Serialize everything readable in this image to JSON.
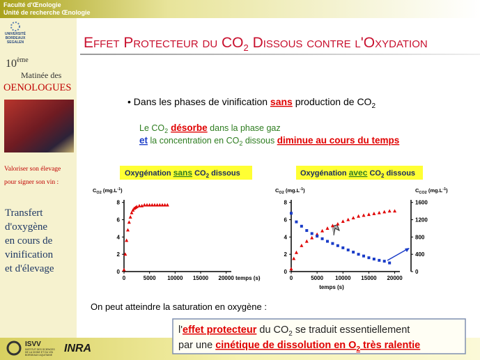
{
  "header": {
    "lines": [
      "Faculté d'Œnologie",
      "Unité de recherche Œnologie"
    ]
  },
  "sidebar": {
    "university": [
      "UNIVERSITÉ",
      "BORDEAUX",
      "SEGALEN"
    ],
    "edition": [
      "10",
      "ème"
    ],
    "event": [
      "Matinée des",
      "OENOLOGUES"
    ],
    "tagline": [
      "Valoriser son élevage",
      "pour signer son vin :"
    ],
    "topic": [
      "Transfert",
      "d'oxygène",
      "en cours de",
      "vinification",
      "et d'élevage"
    ]
  },
  "title": [
    "Effet Protecteur du CO",
    "2",
    " Dissous contre l'",
    "Oxydation"
  ],
  "bullet": [
    "Dans les phases de vinification ",
    "sans",
    " production de CO",
    "2"
  ],
  "statement": [
    [
      "Le CO",
      "2",
      "désorbe",
      " dans la phase gaz"
    ],
    [
      "et",
      " la concentration en CO",
      "2",
      " dissous ",
      "diminue au cours du temps"
    ]
  ],
  "charts": [
    {
      "type": "scatter",
      "label": [
        "Oxygénation ",
        "sans",
        " CO",
        "2",
        " dissous"
      ],
      "ylabel": [
        "C",
        "O2",
        " (mg.L",
        "-1",
        ")"
      ],
      "xlabel": "temps (s)",
      "xlim": [
        0,
        21000
      ],
      "ylim": [
        0,
        8.3
      ],
      "xticks": [
        0,
        5000,
        10000,
        15000,
        20000
      ],
      "yticks": [
        0,
        2,
        4,
        6,
        8
      ],
      "series": [
        {
          "color": "#e00000",
          "marker": "triangle",
          "x": [
            0,
            250,
            500,
            750,
            1000,
            1250,
            1500,
            1750,
            2000,
            2250,
            2500,
            3000,
            3500,
            4000,
            4500,
            5000,
            5500,
            6000,
            6500,
            7000,
            7500,
            8000,
            8500
          ],
          "values": [
            0.2,
            2.0,
            3.6,
            4.8,
            5.7,
            6.3,
            6.8,
            7.1,
            7.3,
            7.4,
            7.5,
            7.6,
            7.6,
            7.7,
            7.7,
            7.7,
            7.7,
            7.7,
            7.7,
            7.7,
            7.7,
            7.7,
            7.7
          ]
        }
      ]
    },
    {
      "type": "scatter",
      "label": [
        "Oxygénation ",
        "avec",
        " CO",
        "2",
        " dissous"
      ],
      "ylabel": [
        "C",
        "O2",
        " (mg.L",
        "-1",
        ")"
      ],
      "y2label": [
        "C",
        "CO2",
        " (mg.L",
        "-1",
        ")"
      ],
      "xlabel": "temps (s)",
      "xlim": [
        0,
        21000
      ],
      "ylim": [
        0,
        8.3
      ],
      "y2lim": [
        0,
        1660
      ],
      "xticks": [
        0,
        5000,
        10000,
        15000,
        20000
      ],
      "yticks": [
        0,
        2,
        4,
        6,
        8
      ],
      "y2ticks": [
        0,
        400,
        800,
        1200,
        1600
      ],
      "series": [
        {
          "color": "#e00000",
          "marker": "triangle",
          "x": [
            0,
            500,
            1000,
            2000,
            3000,
            4000,
            5000,
            6000,
            7000,
            8000,
            9000,
            10000,
            11000,
            12000,
            13000,
            14000,
            15000,
            16000,
            17000,
            18000,
            19000,
            20000
          ],
          "values": [
            0.3,
            1.5,
            2.2,
            3.0,
            3.5,
            3.9,
            4.3,
            4.7,
            5.0,
            5.3,
            5.5,
            5.8,
            6.0,
            6.2,
            6.4,
            6.5,
            6.6,
            6.7,
            6.8,
            6.9,
            7.0,
            7.0
          ]
        },
        {
          "color": "#1a3cc8",
          "marker": "square",
          "axis": "y2",
          "x": [
            0,
            1000,
            2000,
            3000,
            4000,
            5000,
            6000,
            7000,
            8000,
            9000,
            10000,
            11000,
            12000,
            13000,
            14000,
            15000,
            16000,
            17000,
            18000,
            19000
          ],
          "values": [
            1350,
            1150,
            1050,
            950,
            880,
            820,
            760,
            700,
            650,
            600,
            550,
            500,
            450,
            400,
            360,
            320,
            290,
            260,
            240,
            200
          ]
        }
      ]
    }
  ],
  "note": "On peut atteindre la saturation en oxygène :",
  "conclusion": [
    [
      "l'",
      "effet protecteur",
      " du CO",
      "2",
      " se traduit essentiellement"
    ],
    [
      "par une ",
      "cinétique de dissolution en O",
      "2",
      " très ralentie"
    ]
  ],
  "footer": {
    "isvv": "ISVV",
    "isvv_caption": [
      "INSTITUT DES SCIENCES",
      "DE LA VIGNE ET DU VIN",
      "BORDEAUX AQUITAINE"
    ],
    "inra": "INRA"
  }
}
